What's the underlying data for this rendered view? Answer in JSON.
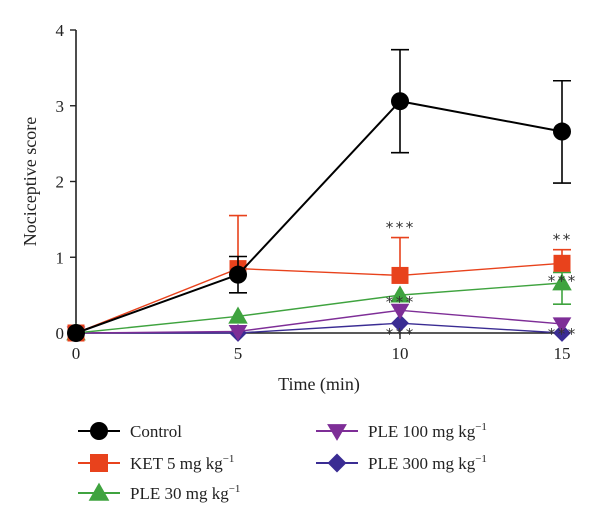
{
  "chart_data": {
    "type": "line",
    "xlabel": "Time (min)",
    "ylabel": "Nociceptive score",
    "xlim": [
      0,
      15
    ],
    "ylim": [
      0,
      4
    ],
    "x_ticks": [
      0,
      5,
      10,
      15
    ],
    "y_ticks": [
      0,
      1,
      2,
      3,
      4
    ],
    "grid": false,
    "legend_position": "bottom",
    "x": [
      0,
      5,
      10,
      15
    ],
    "series": [
      {
        "name": "Control",
        "legend_main": "Control",
        "legend_sup": "",
        "marker": "circle",
        "color": "#000000",
        "values": [
          0,
          0.77,
          3.06,
          2.66
        ],
        "error_upper": [
          0,
          1.01,
          3.74,
          3.33
        ],
        "error_lower": [
          0,
          0.53,
          2.38,
          1.98
        ]
      },
      {
        "name": "KET 5 mg kg−1",
        "legend_main": "KET 5 mg kg",
        "legend_sup": "−1",
        "marker": "square",
        "color": "#e8421c",
        "values": [
          0,
          0.85,
          0.76,
          0.92
        ],
        "error_upper": [
          0,
          1.55,
          1.26,
          1.1
        ],
        "error_lower": [
          0,
          0.85,
          0.76,
          0.92
        ]
      },
      {
        "name": "PLE 30 mg kg−1",
        "legend_main": "PLE 30 mg kg",
        "legend_sup": "−1",
        "marker": "triangle-up",
        "color": "#3fa33f",
        "values": [
          0,
          0.22,
          0.5,
          0.66
        ],
        "error_upper": [
          0,
          0.22,
          0.5,
          0.8
        ],
        "error_lower": [
          0,
          0.22,
          0.5,
          0.38
        ]
      },
      {
        "name": "PLE 100 mg kg−1",
        "legend_main": "PLE 100 mg kg",
        "legend_sup": "−1",
        "marker": "triangle-down",
        "color": "#7e2e97",
        "values": [
          0,
          0.02,
          0.3,
          0.12
        ],
        "error_upper": [
          0,
          0.02,
          0.3,
          0.12
        ],
        "error_lower": [
          0,
          0.02,
          0.3,
          0.12
        ]
      },
      {
        "name": "PLE 300 mg kg−1",
        "legend_main": "PLE 300 mg kg",
        "legend_sup": "−1",
        "marker": "diamond",
        "color": "#3a2c93",
        "values": [
          0,
          0.0,
          0.13,
          0.0
        ],
        "error_upper": [
          0,
          0.0,
          0.13,
          0.0
        ],
        "error_lower": [
          0,
          0.0,
          0.13,
          0.0
        ]
      }
    ],
    "annotations": [
      {
        "text": "***",
        "x": 10,
        "y": 1.33
      },
      {
        "text": "***",
        "x": 10,
        "y": 0.34
      },
      {
        "text": "***",
        "x": 10,
        "y": -0.08
      },
      {
        "text": "**",
        "x": 15,
        "y": 1.17
      },
      {
        "text": "***",
        "x": 15,
        "y": 0.62
      },
      {
        "text": "***",
        "x": 15,
        "y": -0.08
      }
    ]
  }
}
